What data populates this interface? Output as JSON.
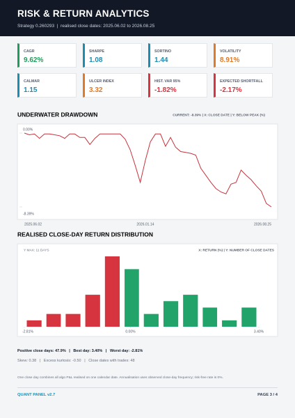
{
  "header": {
    "title": "RISK & RETURN ANALYTICS",
    "subtitle": "Strategy 0.260293  |  realised close dates: 2025.06.02 to 2026.08.25"
  },
  "metrics": [
    {
      "label": "CAGR",
      "value": "9.62%",
      "color": "#1f9d5c"
    },
    {
      "label": "SHARPE",
      "value": "1.08",
      "color": "#1b8db3"
    },
    {
      "label": "SORTINO",
      "value": "1.44",
      "color": "#1b8db3"
    },
    {
      "label": "VOLATILITY",
      "value": "8.91%",
      "color": "#e07a26"
    },
    {
      "label": "CALMAR",
      "value": "1.15",
      "color": "#1b8db3"
    },
    {
      "label": "ULCER INDEX",
      "value": "3.32",
      "color": "#e07a26"
    },
    {
      "label": "HIST. VAR 95%",
      "value": "-1.82%",
      "color": "#d6343f"
    },
    {
      "label": "EXPECTED SHORTFALL",
      "value": "-2.17%",
      "color": "#d6343f"
    }
  ],
  "chart_data": [
    {
      "type": "line",
      "title": "UNDERWATER DRAWDOWN",
      "note": "CURRENT: -8.39%  |  X: CLOSE DATE  |  Y: BELOW PEAK (%)",
      "color": "#c8323c",
      "categories": [
        "2025.06.02",
        null,
        null,
        null,
        null,
        null,
        null,
        null,
        null,
        null,
        null,
        null,
        null,
        null,
        null,
        null,
        null,
        null,
        null,
        null,
        null,
        null,
        null,
        null,
        "2026.01.14",
        null,
        null,
        null,
        null,
        null,
        null,
        null,
        null,
        null,
        null,
        null,
        null,
        null,
        null,
        null,
        null,
        null,
        null,
        null,
        null,
        null,
        null,
        null,
        null,
        "2026.08.25"
      ],
      "values": [
        0,
        -0.2,
        -0.1,
        -0.6,
        -0.1,
        -0.1,
        -0.2,
        -0.3,
        -0.6,
        -0.1,
        -0.1,
        -0.5,
        -0.5,
        -1.3,
        -0.6,
        -0.1,
        -0.1,
        -0.1,
        -0.1,
        -0.1,
        -0.7,
        -1.9,
        -3.7,
        -5.6,
        -3.1,
        -1.0,
        -0.1,
        -0.1,
        -1.5,
        -0.5,
        -1.6,
        -2.1,
        -2.2,
        -2.3,
        -2.5,
        -4.0,
        -4.8,
        -5.6,
        -6.3,
        -6.7,
        -6.9,
        -5.8,
        -5.6,
        -4.2,
        -4.8,
        -5.3,
        -6.0,
        -6.6,
        -8.0,
        -8.39
      ],
      "ylim": [
        -8.39,
        0
      ],
      "yticks": [
        {
          "value": 0,
          "label": "0.00%"
        },
        {
          "value": -8.39,
          "label": "-8.39%"
        }
      ]
    },
    {
      "type": "histogram",
      "title": "REALISED CLOSE-DAY RETURN DISTRIBUTION",
      "ymax_label": "Y MAX: 11 DAYS",
      "note": "X: RETURN (%)  |  Y: NUMBER OF CLOSE DATES",
      "bins": [
        -2.81,
        -2.29,
        -1.78,
        -1.26,
        -0.74,
        -0.22,
        0.29,
        0.81,
        1.33,
        1.85,
        2.36,
        2.88,
        3.4
      ],
      "values": [
        1,
        2,
        2,
        5,
        11,
        9,
        2,
        4,
        5,
        3,
        1,
        3
      ],
      "colors": [
        "#d6343f",
        "#d6343f",
        "#d6343f",
        "#d6343f",
        "#d6343f",
        "#22a36a",
        "#22a36a",
        "#22a36a",
        "#22a36a",
        "#22a36a",
        "#22a36a",
        "#22a36a"
      ],
      "xlim": [
        -2.81,
        3.4
      ],
      "xticks": [
        {
          "value": -2.81,
          "label": "-2.81%"
        },
        {
          "value": 0,
          "label": "0.00%"
        },
        {
          "value": 3.4,
          "label": "3.40%"
        }
      ],
      "ylim": [
        0,
        11
      ]
    }
  ],
  "stats": {
    "line1": "Positive close days: 47.9%   |   Best day: 3.40%   |   Worst day: -2.81%",
    "line2": "Skew: 0.38   |   Excess kurtosis: -0.50   |   Close dates with trades: 48"
  },
  "note": "One close day combines all algo P&L realised on one calendar date. Annualisation uses observed close-day frequency; risk-free rate is 0%.",
  "footer": {
    "left": "QUANT PANEL v2.7",
    "right": "PAGE 3 / 4"
  }
}
